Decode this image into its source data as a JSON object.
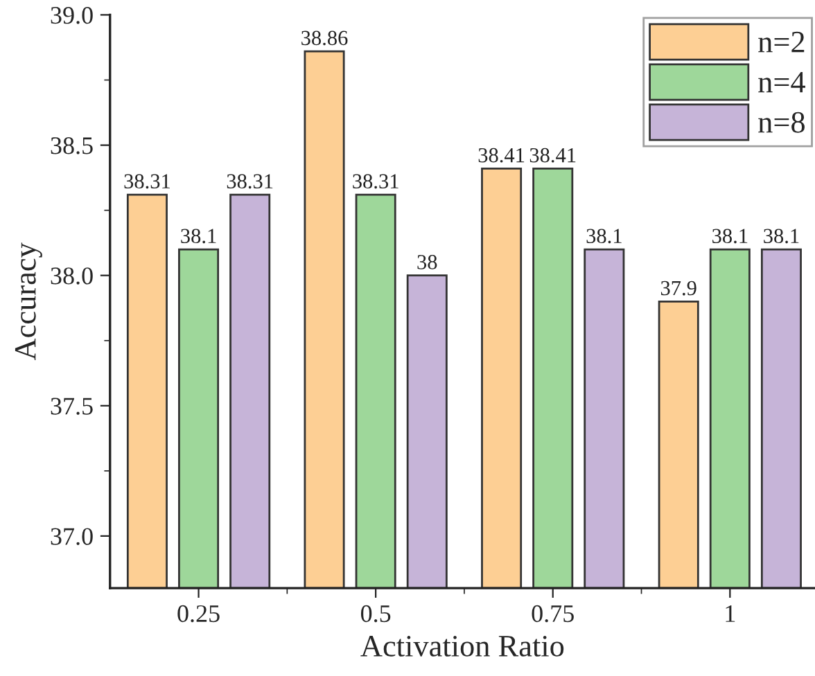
{
  "chart_data": {
    "type": "bar",
    "xlabel": "Activation Ratio",
    "ylabel": "Accuracy",
    "categories": [
      "0.25",
      "0.5",
      "0.75",
      "1"
    ],
    "series": [
      {
        "name": "n=2",
        "color": "#fdcf94",
        "values": [
          38.31,
          38.86,
          38.41,
          37.9
        ]
      },
      {
        "name": "n=4",
        "color": "#9ed79a",
        "values": [
          38.1,
          38.31,
          38.41,
          38.1
        ]
      },
      {
        "name": "n=8",
        "color": "#c6b4d8",
        "values": [
          38.31,
          38,
          38.1,
          38.1
        ]
      }
    ],
    "ylim": [
      36.8,
      39.0
    ],
    "yticks": [
      {
        "value": 37.0,
        "label": "37.0"
      },
      {
        "value": 37.5,
        "label": "37.5"
      },
      {
        "value": 38.0,
        "label": "38.0"
      },
      {
        "value": 38.5,
        "label": "38.5"
      },
      {
        "value": 39.0,
        "label": "39.0"
      }
    ],
    "data_labels": true,
    "legend": "top right",
    "grid": false
  }
}
